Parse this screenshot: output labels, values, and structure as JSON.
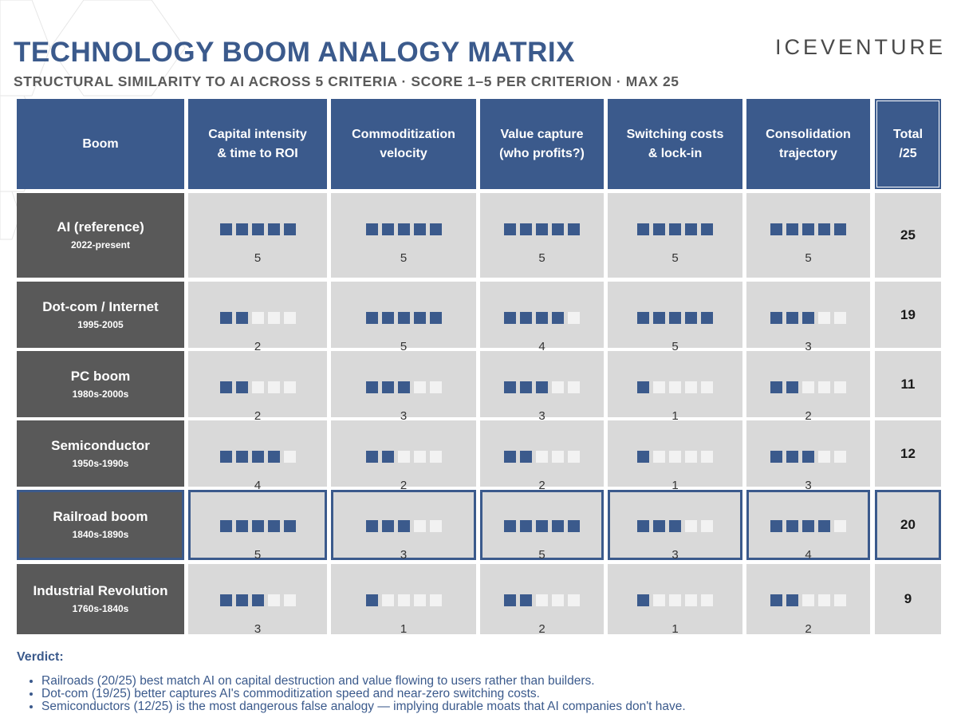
{
  "title": "TECHNOLOGY BOOM ANALOGY MATRIX",
  "subtitle": "STRUCTURAL SIMILARITY TO AI ACROSS 5 CRITERIA · SCORE 1–5 PER CRITERION · MAX 25",
  "brand": "ICEVENTURE",
  "colors": {
    "accent": "#3b5a8c",
    "label_bg": "#595959",
    "cell_bg": "#d9d9d9",
    "empty_square": "#f2f2f2"
  },
  "chart_data": {
    "type": "table",
    "max_score": 5,
    "max_total": 25,
    "header": {
      "boom": "Boom",
      "criteria": [
        [
          "Capital intensity",
          "& time to ROI"
        ],
        [
          "Commoditization",
          "velocity"
        ],
        [
          "Value capture",
          "(who profits?)"
        ],
        [
          "Switching costs",
          "& lock-in"
        ],
        [
          "Consolidation",
          "trajectory"
        ]
      ],
      "total": [
        "Total",
        "/25"
      ]
    },
    "rows": [
      {
        "name": "AI (reference)",
        "years": "2022-present",
        "scores": [
          5,
          5,
          5,
          5,
          5
        ],
        "total": 25,
        "highlight": false
      },
      {
        "name": "Dot-com / Internet",
        "years": "1995-2005",
        "scores": [
          2,
          5,
          4,
          5,
          3
        ],
        "total": 19,
        "highlight": false
      },
      {
        "name": "PC boom",
        "years": "1980s-2000s",
        "scores": [
          2,
          3,
          3,
          1,
          2
        ],
        "total": 11,
        "highlight": false
      },
      {
        "name": "Semiconductor",
        "years": "1950s-1990s",
        "scores": [
          4,
          2,
          2,
          1,
          3
        ],
        "total": 12,
        "highlight": false
      },
      {
        "name": "Railroad boom",
        "years": "1840s-1890s",
        "scores": [
          5,
          3,
          5,
          3,
          4
        ],
        "total": 20,
        "highlight": true
      },
      {
        "name": "Industrial Revolution",
        "years": "1760s-1840s",
        "scores": [
          3,
          1,
          2,
          1,
          2
        ],
        "total": 9,
        "highlight": false
      }
    ]
  },
  "verdict": {
    "title": "Verdict:",
    "items": [
      "Railroads (20/25) best match AI on capital destruction and value flowing to users rather than builders.",
      "Dot-com (19/25) better captures AI's commoditization speed and near-zero switching costs.",
      "Semiconductors (12/25) is the most dangerous false analogy — implying durable moats that AI companies don't have."
    ]
  }
}
